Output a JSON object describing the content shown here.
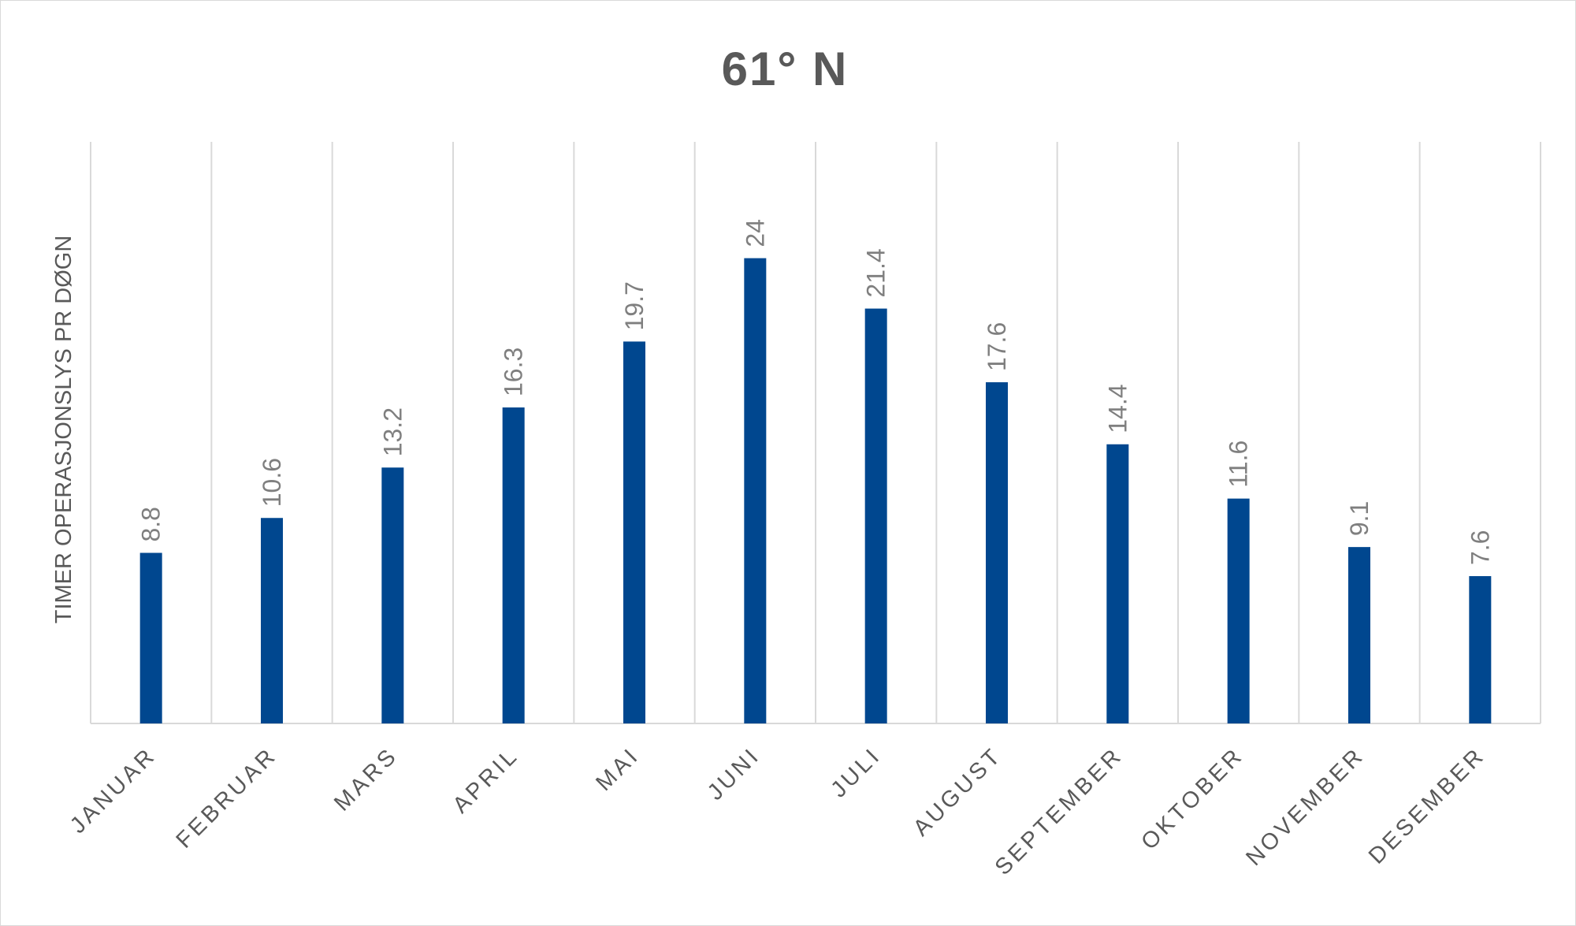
{
  "chart_data": {
    "type": "bar",
    "title": "61° N",
    "ylabel": "TIMER OPERASJONSLYS PR DØGN",
    "xlabel": "",
    "categories": [
      "JANUAR",
      "FEBRUAR",
      "MARS",
      "APRIL",
      "MAI",
      "JUNI",
      "JULI",
      "AUGUST",
      "SEPTEMBER",
      "OKTOBER",
      "NOVEMBER",
      "DESEMBER"
    ],
    "values": [
      8.8,
      10.6,
      13.2,
      16.3,
      19.7,
      24,
      21.4,
      17.6,
      14.4,
      11.6,
      9.1,
      7.6
    ],
    "data_labels": [
      "8.8",
      "10.6",
      "13.2",
      "16.3",
      "19.7",
      "24",
      "21.4",
      "17.6",
      "14.4",
      "11.6",
      "9.1",
      "7.6"
    ],
    "ylim": [
      0,
      30
    ],
    "grid": "vertical",
    "legend": "none",
    "bar_color": "#00478f"
  }
}
